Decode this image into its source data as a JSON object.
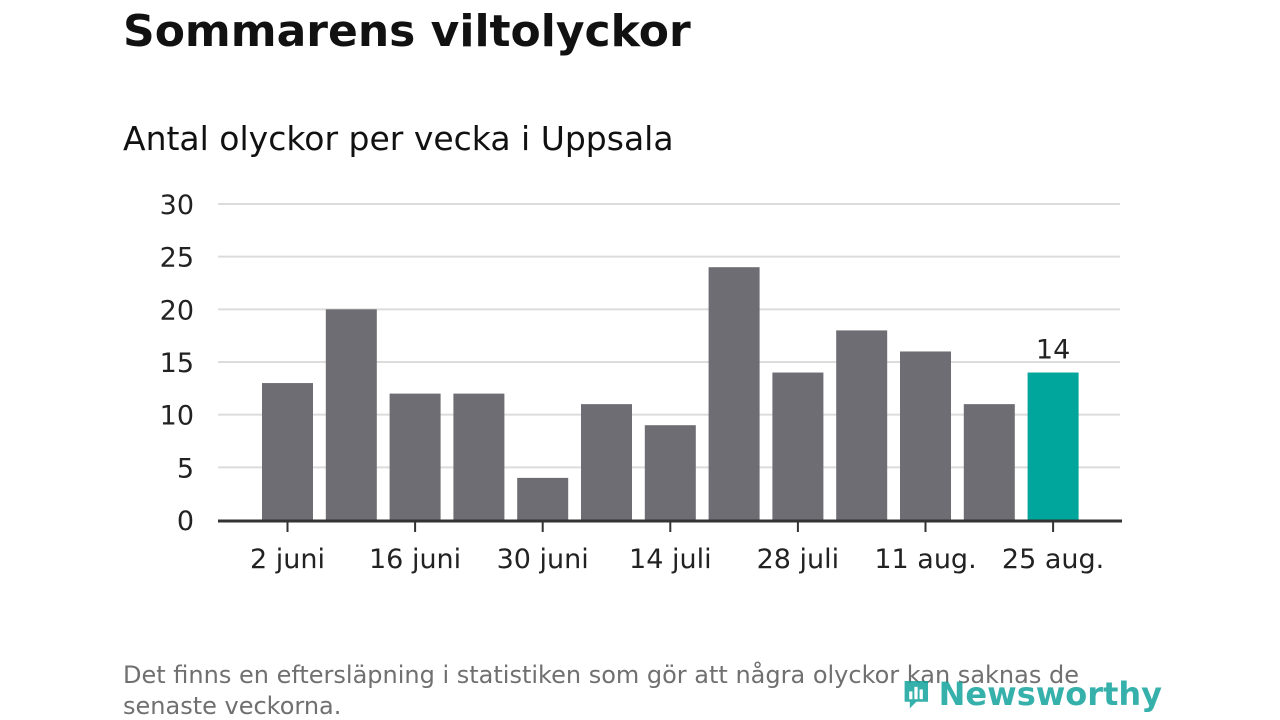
{
  "header": {
    "title": "Sommarens viltolyckor",
    "subtitle": "Antal olyckor per vecka i Uppsala"
  },
  "footer": {
    "note": "Det finns en eftersläpning i statistiken som gör att några olyckor kan saknas de senaste veckorna.",
    "brand": "Newsworthy"
  },
  "colors": {
    "bar": "#6e6d73",
    "highlight": "#00a59b",
    "grid": "#dcdcdc",
    "axis": "#333333",
    "brand": "#14a39c"
  },
  "chart_data": {
    "type": "bar",
    "values": [
      13,
      20,
      12,
      12,
      4,
      11,
      9,
      24,
      14,
      18,
      16,
      11,
      14
    ],
    "tick_labels": [
      "2 juni",
      "16 juni",
      "30 juni",
      "14 juli",
      "28 juli",
      "11 aug.",
      "25 aug."
    ],
    "tick_bar_index": [
      0,
      2,
      4,
      6,
      8,
      10,
      12
    ],
    "highlight_index": 12,
    "data_labels": [
      {
        "index": 12,
        "text": "14"
      }
    ],
    "ylim": [
      0,
      30
    ],
    "yticks": [
      0,
      5,
      10,
      15,
      20,
      25,
      30
    ],
    "grid": true,
    "legend": "none"
  }
}
